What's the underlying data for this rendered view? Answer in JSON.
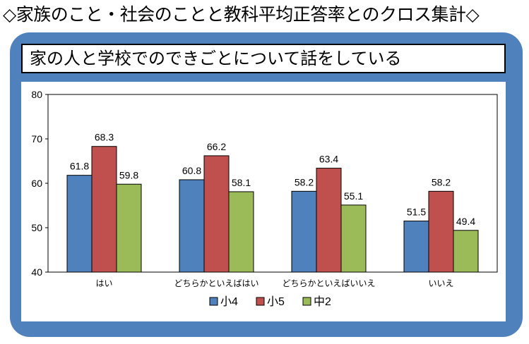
{
  "header": {
    "title": "◇家族のこと・社会のことと教科平均正答率とのクロス集計◇"
  },
  "panel": {
    "subtitle": "家の人と学校でのできごとについて話をしている",
    "background_color": "#4f81bd"
  },
  "chart_data": {
    "type": "bar",
    "categories": [
      "はい",
      "どちらかといえばはい",
      "どちらかといえばいいえ",
      "いいえ"
    ],
    "series": [
      {
        "name": "小4",
        "values": [
          61.8,
          60.8,
          58.2,
          51.5
        ],
        "color": "#4f81bd"
      },
      {
        "name": "小5",
        "values": [
          68.3,
          66.2,
          63.4,
          58.2
        ],
        "color": "#c0504d"
      },
      {
        "name": "中2",
        "values": [
          59.8,
          58.1,
          55.1,
          49.4
        ],
        "color": "#9bbb59"
      }
    ],
    "ylim": [
      40,
      80
    ],
    "yticks": [
      40,
      50,
      60,
      70,
      80
    ],
    "grid": false,
    "legend": "bottom-center",
    "data_labels": true
  }
}
